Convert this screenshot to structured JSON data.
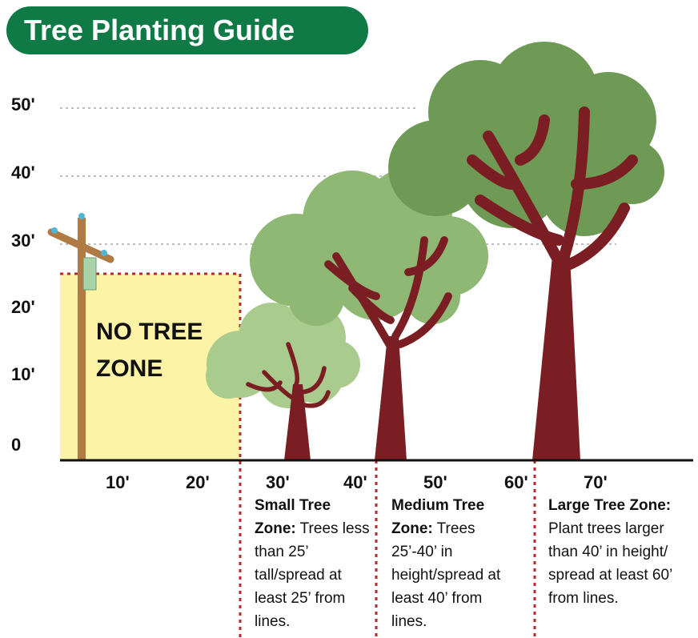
{
  "header": {
    "title": "Tree Planting Guide"
  },
  "height_labels": [
    "50'",
    "40'",
    "30'",
    "20'",
    "10'",
    "0"
  ],
  "distance_labels": [
    "10'",
    "20'",
    "30'",
    "40'",
    "50'",
    "60'",
    "70'"
  ],
  "no_tree_zone": "NO TREE ZONE",
  "zones": [
    {
      "name": "Small Tree Zone:",
      "description": "Trees less than 25’ tall/spread at least 25’ from lines."
    },
    {
      "name": "Medium Tree Zone:",
      "description": "Trees 25’-40’ in height/spread at least 40’ from lines."
    },
    {
      "name": "Large Tree Zone:",
      "description": "Plant trees larger than 40’ in height/ spread at least 60’ from lines."
    }
  ]
}
